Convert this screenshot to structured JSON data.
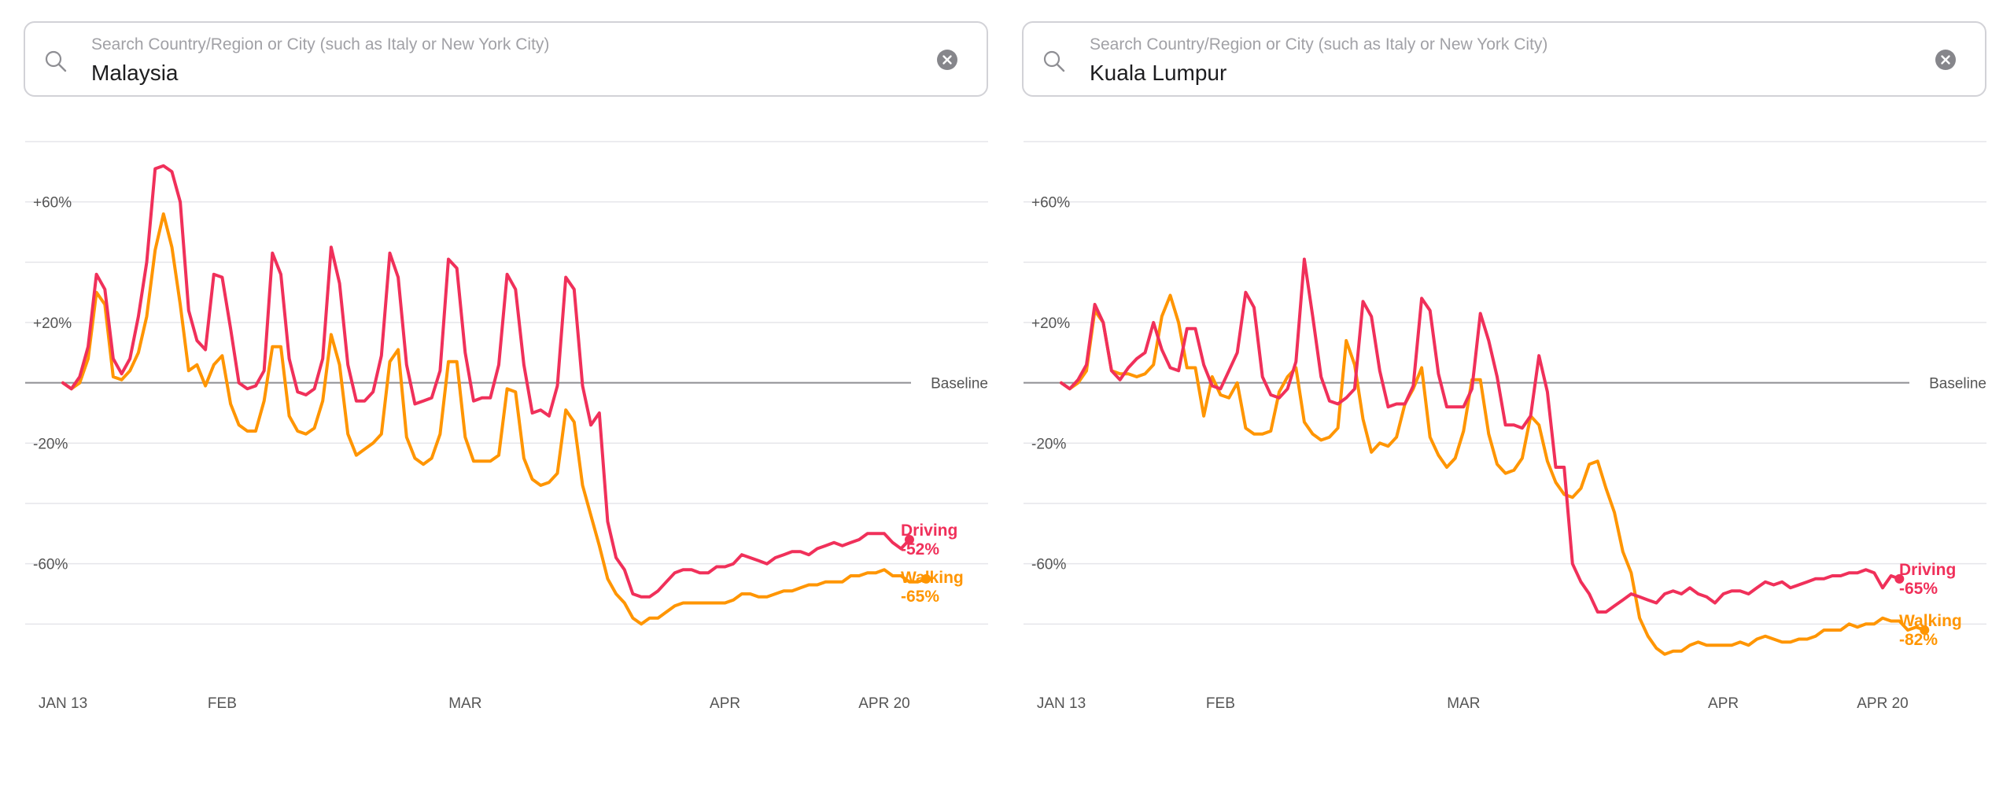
{
  "colors": {
    "driving": "#f0305a",
    "walking": "#ff9500",
    "grid": "#e5e5ea",
    "baseline": "#8e8e93",
    "text": "#555555"
  },
  "panels": [
    {
      "search": {
        "placeholder": "Search Country/Region or City (such as Italy or New York City)",
        "value": "Malaysia"
      },
      "icons": {
        "search": "search-icon",
        "clear": "clear-icon"
      }
    },
    {
      "search": {
        "placeholder": "Search Country/Region or City (such as Italy or New York City)",
        "value": "Kuala Lumpur"
      },
      "icons": {
        "search": "search-icon",
        "clear": "clear-icon"
      }
    }
  ],
  "chart_data": [
    {
      "type": "line",
      "title": "",
      "xlabel": "",
      "ylabel": "",
      "x_range": [
        "2020-01-13",
        "2020-04-20"
      ],
      "x_ticks": [
        {
          "date": "2020-01-13",
          "label": "JAN 13"
        },
        {
          "date": "2020-02-01",
          "label": "FEB"
        },
        {
          "date": "2020-03-01",
          "label": "MAR"
        },
        {
          "date": "2020-04-01",
          "label": "APR"
        },
        {
          "date": "2020-04-20",
          "label": "APR 20"
        }
      ],
      "y_ticks": [
        {
          "value": 60,
          "label": "+60%"
        },
        {
          "value": 20,
          "label": "+20%"
        },
        {
          "value": -20,
          "label": "-20%"
        },
        {
          "value": -60,
          "label": "-60%"
        }
      ],
      "ylim": [
        -100,
        80
      ],
      "grid": true,
      "baseline": {
        "value": 0,
        "label": "Baseline"
      },
      "series": [
        {
          "name": "Driving",
          "end_label": "-52%",
          "color": "driving",
          "values": [
            0,
            -2,
            2,
            12,
            36,
            31,
            8,
            3,
            8,
            22,
            40,
            71,
            72,
            70,
            60,
            24,
            14,
            11,
            36,
            35,
            18,
            0,
            -2,
            -1,
            4,
            43,
            36,
            8,
            -3,
            -4,
            -2,
            8,
            45,
            33,
            6,
            -6,
            -6,
            -3,
            9,
            43,
            35,
            6,
            -7,
            -6,
            -5,
            4,
            41,
            38,
            10,
            -6,
            -5,
            -5,
            6,
            36,
            31,
            6,
            -10,
            -9,
            -11,
            -1,
            35,
            31,
            -1,
            -14,
            -10,
            -46,
            -58,
            -62,
            -70,
            -71,
            -71,
            -69,
            -66,
            -63,
            -62,
            -62,
            -63,
            -63,
            -61,
            -61,
            -60,
            -57,
            -58,
            -59,
            -60,
            -58,
            -57,
            -56,
            -56,
            -57,
            -55,
            -54,
            -53,
            -54,
            -53,
            -52,
            -50,
            -50,
            -50,
            -53,
            -55,
            -52
          ]
        },
        {
          "name": "Walking",
          "end_label": "-65%",
          "color": "walking",
          "values": [
            0,
            -2,
            0,
            8,
            30,
            26,
            2,
            1,
            4,
            10,
            22,
            44,
            56,
            45,
            26,
            4,
            6,
            -1,
            6,
            9,
            -7,
            -14,
            -16,
            -16,
            -6,
            12,
            12,
            -11,
            -16,
            -17,
            -15,
            -6,
            16,
            6,
            -17,
            -24,
            -22,
            -20,
            -17,
            7,
            11,
            -18,
            -25,
            -27,
            -25,
            -17,
            7,
            7,
            -18,
            -26,
            -26,
            -26,
            -24,
            -2,
            -3,
            -25,
            -32,
            -34,
            -33,
            -30,
            -9,
            -13,
            -34,
            -44,
            -54,
            -65,
            -70,
            -73,
            -78,
            -80,
            -78,
            -78,
            -76,
            -74,
            -73,
            -73,
            -73,
            -73,
            -73,
            -73,
            -72,
            -70,
            -70,
            -71,
            -71,
            -70,
            -69,
            -69,
            -68,
            -67,
            -67,
            -66,
            -66,
            -66,
            -64,
            -64,
            -63,
            -63,
            -62,
            -64,
            -64,
            -66,
            -66,
            -65
          ]
        }
      ]
    },
    {
      "type": "line",
      "title": "",
      "xlabel": "",
      "ylabel": "",
      "x_range": [
        "2020-01-13",
        "2020-04-20"
      ],
      "x_ticks": [
        {
          "date": "2020-01-13",
          "label": "JAN 13"
        },
        {
          "date": "2020-02-01",
          "label": "FEB"
        },
        {
          "date": "2020-03-01",
          "label": "MAR"
        },
        {
          "date": "2020-04-01",
          "label": "APR"
        },
        {
          "date": "2020-04-20",
          "label": "APR 20"
        }
      ],
      "y_ticks": [
        {
          "value": 60,
          "label": "+60%"
        },
        {
          "value": 20,
          "label": "+20%"
        },
        {
          "value": -20,
          "label": "-20%"
        },
        {
          "value": -60,
          "label": "-60%"
        }
      ],
      "ylim": [
        -100,
        80
      ],
      "grid": true,
      "baseline": {
        "value": 0,
        "label": "Baseline"
      },
      "series": [
        {
          "name": "Driving",
          "end_label": "-65%",
          "color": "driving",
          "values": [
            0,
            -2,
            1,
            6,
            26,
            20,
            4,
            1,
            5,
            8,
            10,
            20,
            11,
            5,
            4,
            18,
            18,
            6,
            -1,
            -2,
            4,
            10,
            30,
            25,
            2,
            -4,
            -5,
            -2,
            7,
            41,
            22,
            2,
            -6,
            -7,
            -5,
            -2,
            27,
            22,
            4,
            -8,
            -7,
            -7,
            -1,
            28,
            24,
            3,
            -8,
            -8,
            -8,
            -2,
            23,
            14,
            2,
            -14,
            -14,
            -15,
            -11,
            9,
            -3,
            -28,
            -28,
            -60,
            -66,
            -70,
            -76,
            -76,
            -74,
            -72,
            -70,
            -71,
            -72,
            -73,
            -70,
            -69,
            -70,
            -68,
            -70,
            -71,
            -73,
            -70,
            -69,
            -69,
            -70,
            -68,
            -66,
            -67,
            -66,
            -68,
            -67,
            -66,
            -65,
            -65,
            -64,
            -64,
            -63,
            -63,
            -62,
            -63,
            -68,
            -64,
            -65
          ]
        },
        {
          "name": "Walking",
          "end_label": "-82%",
          "color": "walking",
          "values": [
            0,
            -2,
            0,
            4,
            24,
            20,
            4,
            3,
            3,
            2,
            3,
            6,
            22,
            29,
            20,
            5,
            5,
            -11,
            2,
            -4,
            -5,
            0,
            -15,
            -17,
            -17,
            -16,
            -3,
            2,
            5,
            -13,
            -17,
            -19,
            -18,
            -15,
            14,
            6,
            -12,
            -23,
            -20,
            -21,
            -18,
            -7,
            -2,
            5,
            -18,
            -24,
            -28,
            -25,
            -16,
            1,
            1,
            -17,
            -27,
            -30,
            -29,
            -25,
            -11,
            -14,
            -26,
            -33,
            -37,
            -38,
            -35,
            -27,
            -26,
            -35,
            -43,
            -56,
            -63,
            -78,
            -84,
            -88,
            -90,
            -89,
            -89,
            -87,
            -86,
            -87,
            -87,
            -87,
            -87,
            -86,
            -87,
            -85,
            -84,
            -85,
            -86,
            -86,
            -85,
            -85,
            -84,
            -82,
            -82,
            -82,
            -80,
            -81,
            -80,
            -80,
            -78,
            -79,
            -79,
            -82,
            -81,
            -82
          ]
        }
      ]
    }
  ]
}
